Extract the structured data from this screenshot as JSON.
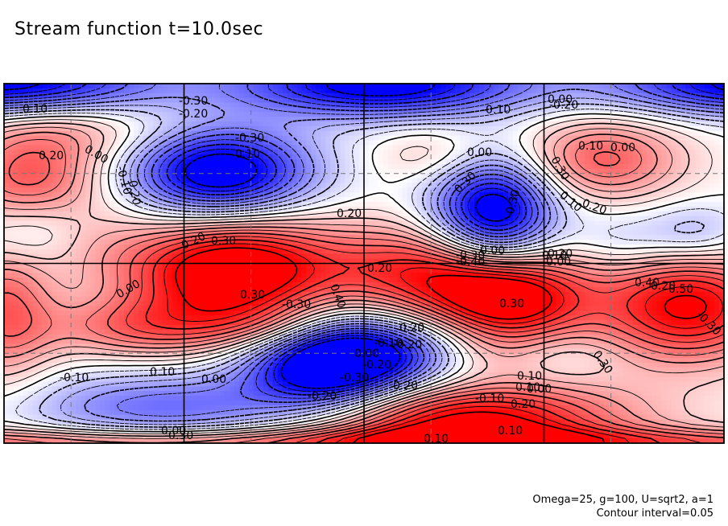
{
  "title": "Stream function t=10.0sec",
  "footer": {
    "params": "Omega=25, g=100, U=sqrt2, a=1",
    "interval": "Contour interval=0.05"
  },
  "colors": {
    "positive": "#ff0000",
    "negative": "#0000ff",
    "neutral": "#ffffff",
    "contour": "#000000"
  },
  "chart_data": {
    "type": "heatmap",
    "title": "Stream function t=10.0sec",
    "variable": "stream function",
    "time": "10.0sec",
    "contour_interval": 0.05,
    "value_range": [
      -0.5,
      0.5
    ],
    "panel_grid": {
      "columns": 4,
      "rows": 2
    },
    "contour_labels": [
      "0.10",
      "0.20",
      "-0.30",
      "-0.20",
      "-0.10",
      "0.00",
      "-0.20",
      "-0.30",
      "0.10",
      "0.00",
      "-0.10",
      "0.20",
      "0.30",
      "0.00",
      "0.20",
      "-0.30",
      "0.30",
      "0.10",
      "0.20",
      "0.00",
      "0.10",
      "0.20",
      "0.30",
      "0.20",
      "0.30",
      "0.40",
      "-0.30",
      "-0.40",
      "-0.10",
      "0.00",
      "0.00",
      "-0.20",
      "0.20",
      "0.30",
      "0.40",
      "0.50",
      "-0.30",
      "-0.10",
      "0.10",
      "0.00",
      "-0.20",
      "-0.30",
      "0.20",
      "0.10",
      "0.00",
      "-0.10",
      "0.20",
      "0.00",
      "-0.30",
      "0.10",
      "0.10",
      "0.20",
      "-0.30",
      "0.00",
      "0.20",
      "0.30",
      "0.00",
      "-0.10",
      "-0.20",
      "0.10"
    ]
  }
}
